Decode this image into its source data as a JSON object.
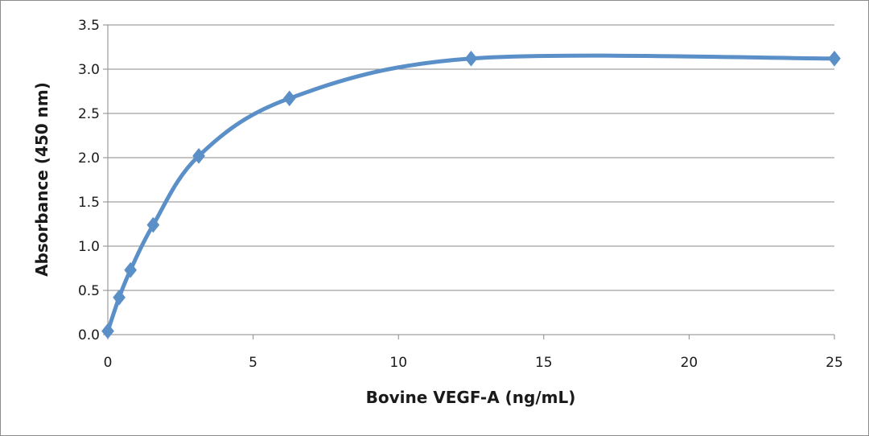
{
  "chart_data": {
    "type": "line",
    "title": "",
    "xlabel": "Bovine VEGF-A  (ng/mL)",
    "ylabel": "Absorbance  (450 nm)",
    "xlim": [
      0,
      25
    ],
    "ylim": [
      0.0,
      3.5
    ],
    "x_ticks": [
      0,
      5,
      10,
      15,
      20,
      25
    ],
    "x_tick_labels": [
      "0",
      "5",
      "10",
      "15",
      "20",
      "25"
    ],
    "y_ticks": [
      0.0,
      0.5,
      1.0,
      1.5,
      2.0,
      2.5,
      3.0,
      3.5
    ],
    "y_tick_labels": [
      "0.0",
      "0.5",
      "1.0",
      "1.5",
      "2.0",
      "2.5",
      "3.0",
      "3.5"
    ],
    "grid": true,
    "legend": "none",
    "series": [
      {
        "name": "Bovine VEGF-A",
        "color": "#5b8fc8",
        "marker": "diamond",
        "smooth": true,
        "x": [
          0,
          0.39,
          0.78,
          1.56,
          3.13,
          6.25,
          12.5,
          25
        ],
        "y": [
          0.04,
          0.42,
          0.73,
          1.24,
          2.02,
          2.67,
          3.12,
          3.12
        ]
      }
    ]
  }
}
